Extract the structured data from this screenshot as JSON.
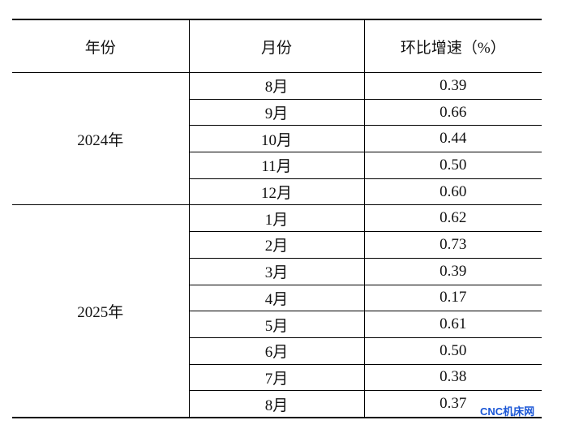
{
  "table": {
    "header": [
      "年份",
      "月份",
      "环比增速（%）"
    ],
    "groups": [
      {
        "year": "2024年",
        "rows": [
          [
            "8月",
            "0.39"
          ],
          [
            "9月",
            "0.66"
          ],
          [
            "10月",
            "0.44"
          ],
          [
            "11月",
            "0.50"
          ],
          [
            "12月",
            "0.60"
          ]
        ]
      },
      {
        "year": "2025年",
        "rows": [
          [
            "1月",
            "0.62"
          ],
          [
            "2月",
            "0.73"
          ],
          [
            "3月",
            "0.39"
          ],
          [
            "4月",
            "0.17"
          ],
          [
            "5月",
            "0.61"
          ],
          [
            "6月",
            "0.50"
          ],
          [
            "7月",
            "0.38"
          ],
          [
            "8月",
            "0.37"
          ]
        ]
      }
    ]
  },
  "watermark": "CNC机床网"
}
